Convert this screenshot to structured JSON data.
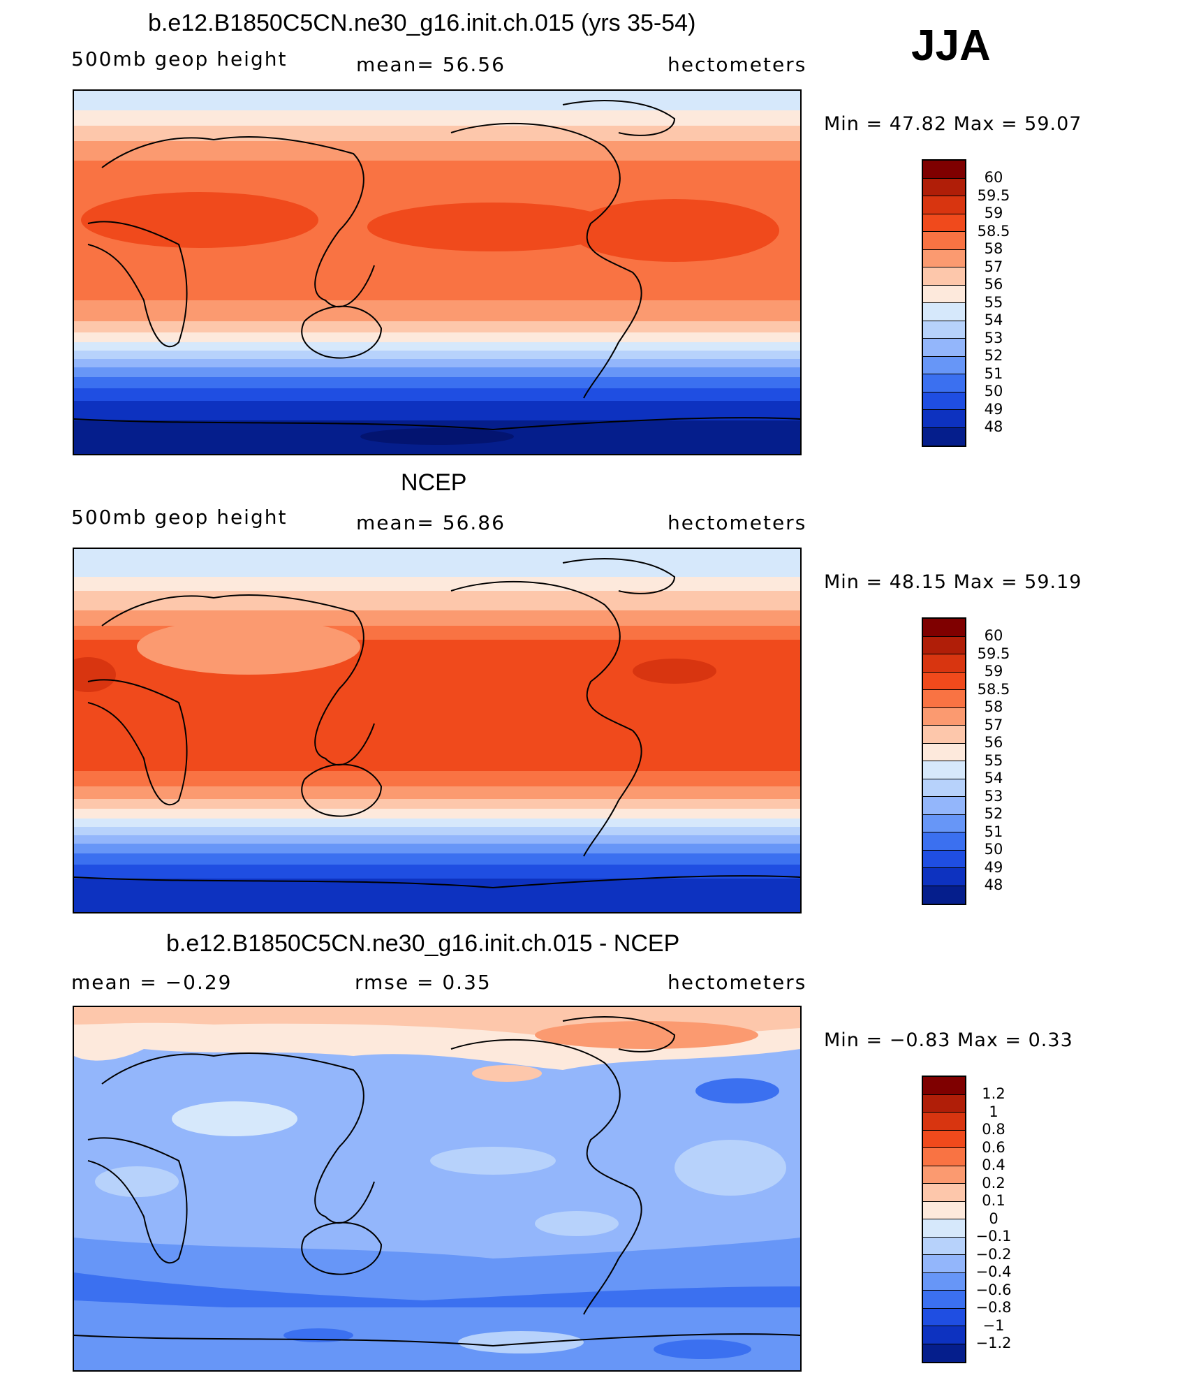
{
  "season": "JJA",
  "panels": [
    {
      "title": "b.e12.B1850C5CN.ne30_g16.init.ch.015 (yrs 35-54)",
      "left_label": "500mb  geop  height",
      "center_label": "mean=   56.56",
      "right_label": "hectometers",
      "minmax": "Min  =    47.82  Max  =    59.07",
      "colorbar_labels": [
        "60",
        "59.5",
        "59",
        "58.5",
        "58",
        "57",
        "56",
        "55",
        "54",
        "53",
        "52",
        "51",
        "50",
        "49",
        "48"
      ]
    },
    {
      "title": "NCEP",
      "left_label": "500mb  geop  height",
      "center_label": "mean=   56.86",
      "right_label": "hectometers",
      "minmax": "Min  =    48.15  Max  =    59.19",
      "colorbar_labels": [
        "60",
        "59.5",
        "59",
        "58.5",
        "58",
        "57",
        "56",
        "55",
        "54",
        "53",
        "52",
        "51",
        "50",
        "49",
        "48"
      ]
    },
    {
      "title": "b.e12.B1850C5CN.ne30_g16.init.ch.015 - NCEP",
      "left_label": "mean  =    −0.29",
      "center_label": "rmse  =     0.35",
      "right_label": "hectometers",
      "minmax": "Min  =   −0.83  Max  =     0.33",
      "colorbar_labels": [
        "1.2",
        "1",
        "0.8",
        "0.6",
        "0.4",
        "0.2",
        "0.1",
        "0",
        "−0.1",
        "−0.2",
        "−0.4",
        "−0.6",
        "−0.8",
        "−1",
        "−1.2"
      ]
    }
  ],
  "colors": {
    "scale": [
      "#7f0000",
      "#b01e08",
      "#d83510",
      "#f04a1c",
      "#f97343",
      "#fb9a70",
      "#fdc7ab",
      "#fde9dc",
      "#d6e8fb",
      "#b7d2fb",
      "#93b6fb",
      "#6796f7",
      "#3b70f0",
      "#1f4ee2",
      "#0d32c0",
      "#051e8c"
    ]
  }
}
